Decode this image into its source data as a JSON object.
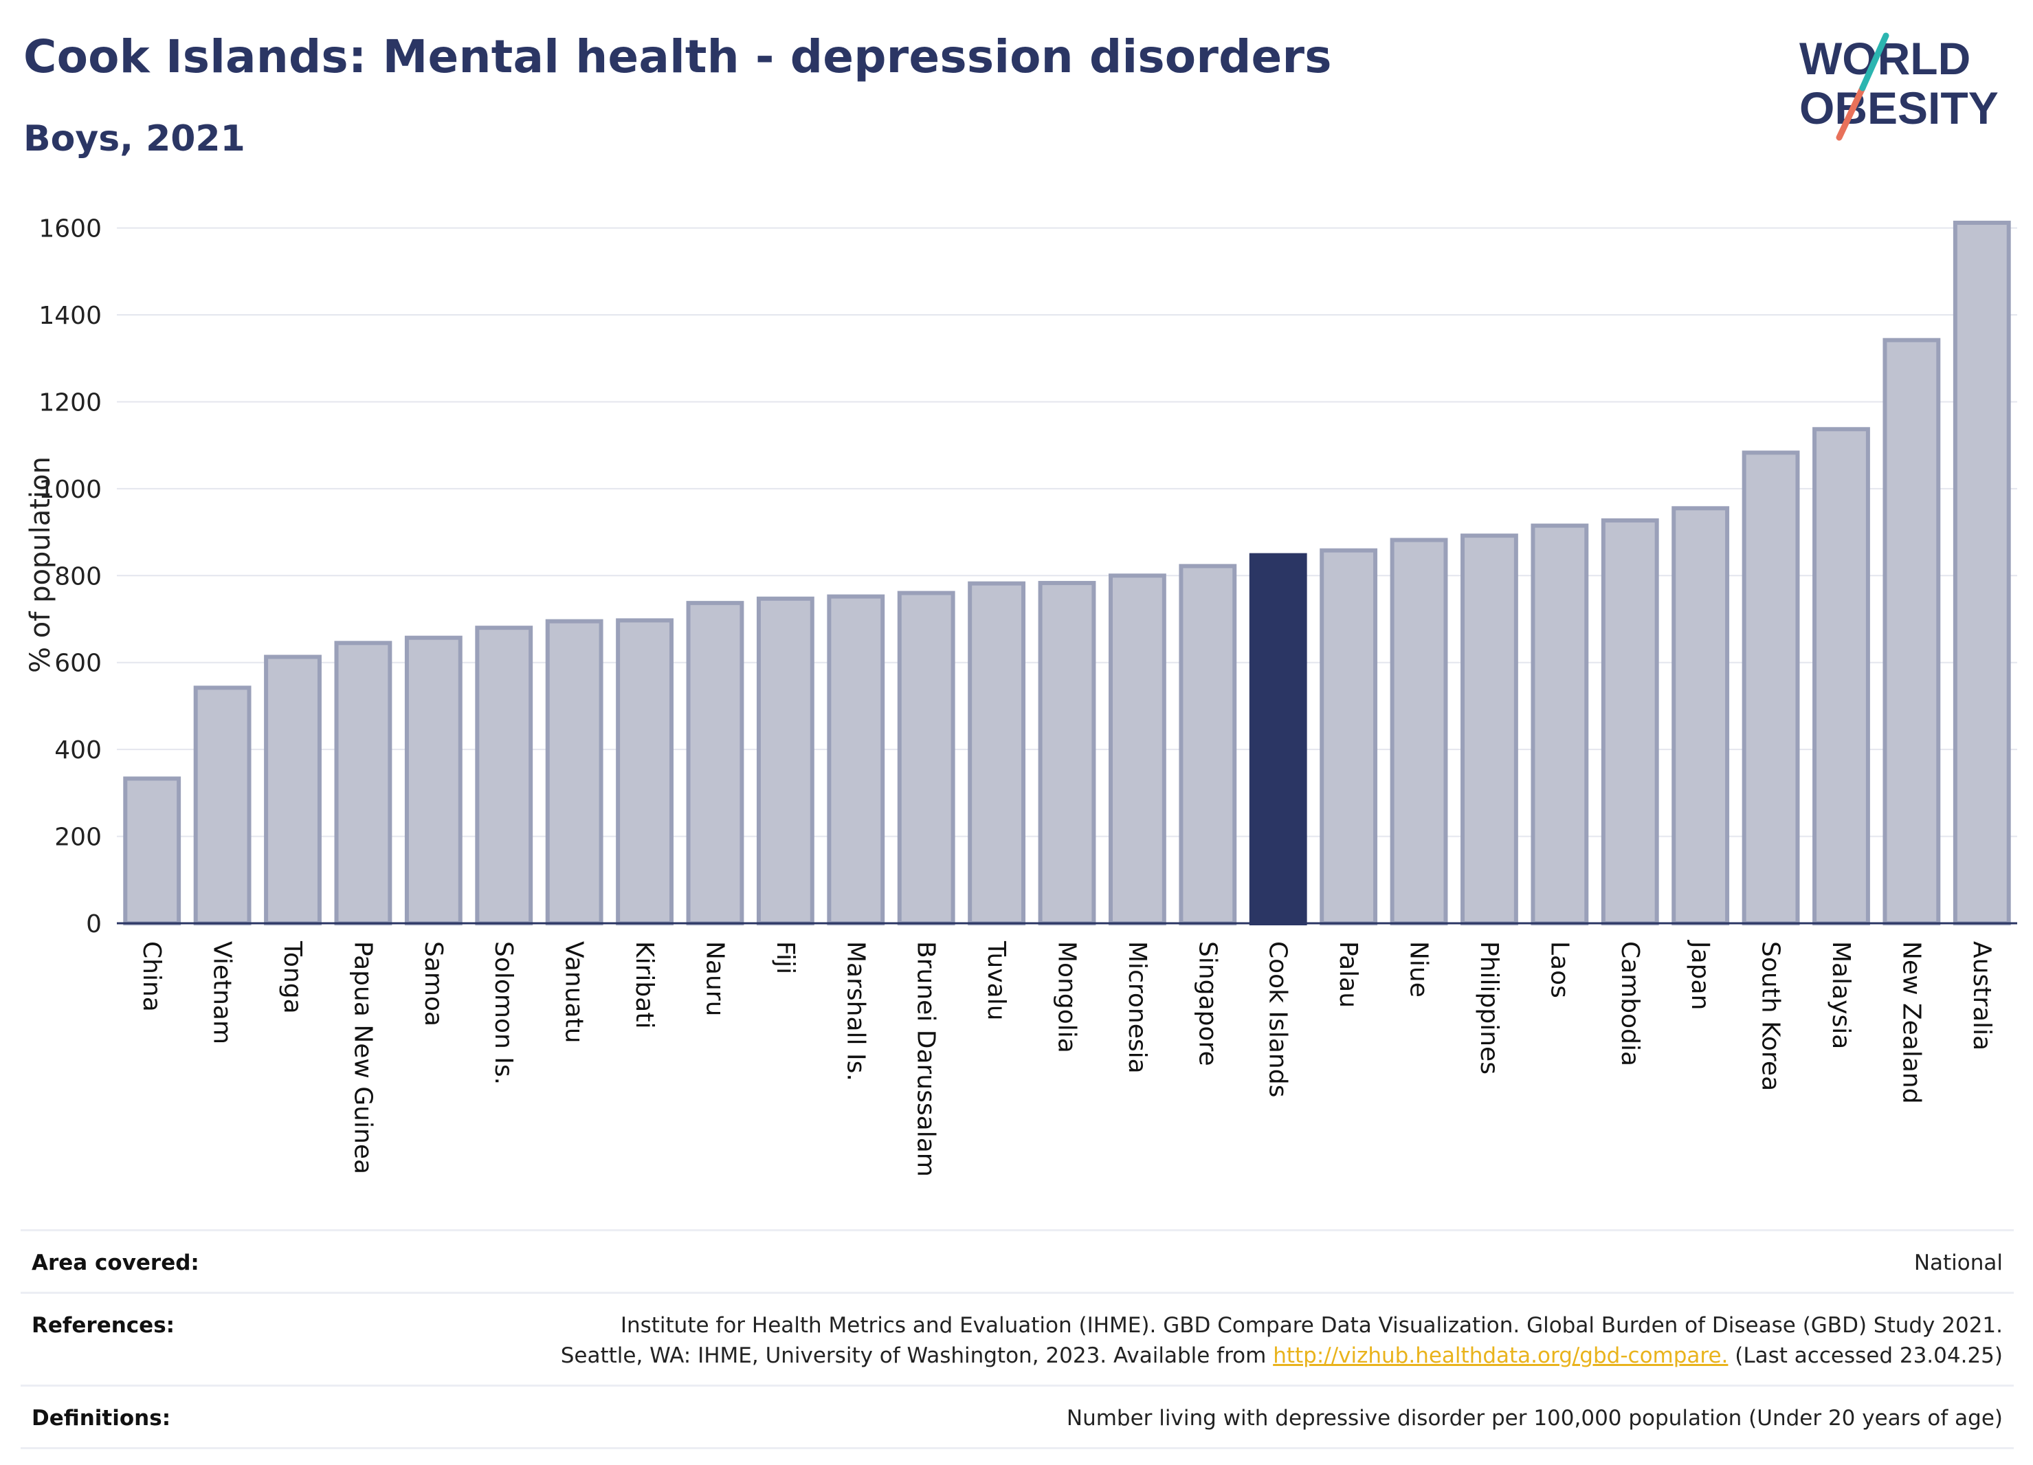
{
  "header": {
    "title": "Cook Islands: Mental health - depression disorders",
    "subtitle": "Boys, 2021"
  },
  "logo": {
    "line1": "WORLD",
    "line2": "OBESITY"
  },
  "colors": {
    "highlight": "#2b3664",
    "bar": "#bfc2d0",
    "bar_border": "#9aa0b9",
    "title": "#2b3664",
    "link": "#e9b31c"
  },
  "chart_data": {
    "type": "bar",
    "ylabel": "% of population",
    "ylim": [
      0,
      1650
    ],
    "yticks": [
      0,
      200,
      400,
      600,
      800,
      1000,
      1200,
      1400,
      1600
    ],
    "grid": true,
    "highlight": "Cook Islands",
    "categories": [
      "China",
      "Vietnam",
      "Tonga",
      "Papua New Guinea",
      "Samoa",
      "Solomon Is.",
      "Vanuatu",
      "Kiribati",
      "Nauru",
      "Fiji",
      "Marshall Is.",
      "Brunei Darussalam",
      "Tuvalu",
      "Mongolia",
      "Micronesia",
      "Singapore",
      "Cook Islands",
      "Palau",
      "Niue",
      "Philippines",
      "Laos",
      "Cambodia",
      "Japan",
      "South Korea",
      "Malaysia",
      "New Zealand",
      "Australia"
    ],
    "values": [
      333,
      542,
      613,
      645,
      657,
      680,
      695,
      697,
      737,
      747,
      752,
      760,
      782,
      783,
      800,
      822,
      847,
      858,
      882,
      892,
      915,
      927,
      955,
      1083,
      1137,
      1342,
      1612
    ]
  },
  "info": {
    "area_label": "Area covered:",
    "area_value": "National",
    "references_label": "References:",
    "references_line1": "Institute for Health Metrics and Evaluation (IHME). GBD Compare Data Visualization. Global Burden of Disease (GBD) Study 2021.",
    "references_line2_pre": "Seattle, WA: IHME, University of Washington, 2023. Available from ",
    "references_link": "http://vizhub.healthdata.org/gbd-compare.",
    "references_line2_post": " (Last accessed 23.04.25)",
    "definitions_label": "Definitions:",
    "definitions_value": "Number living with depressive disorder per 100,000 population (Under 20 years of age)"
  }
}
